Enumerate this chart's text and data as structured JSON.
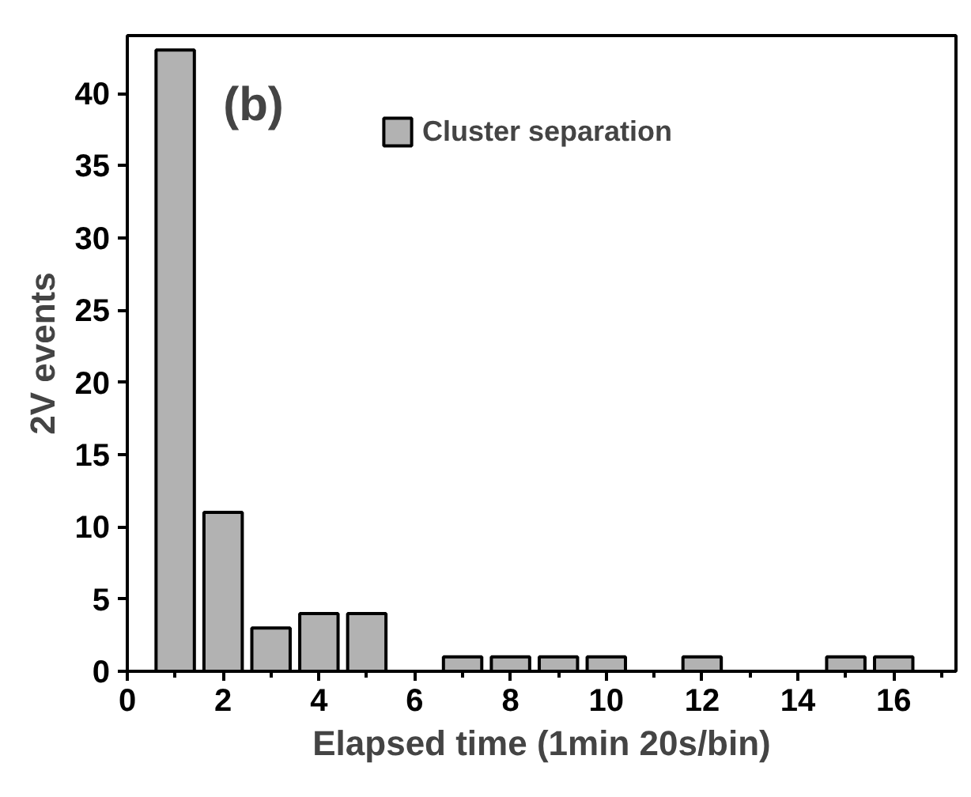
{
  "chart_data": {
    "type": "bar",
    "xlabel": "Elapsed time (1min 20s/bin)",
    "ylabel": "2V events",
    "x": [
      1,
      2,
      3,
      4,
      5,
      7,
      8,
      9,
      10,
      12,
      15,
      16
    ],
    "series": [
      {
        "name": "Cluster separation",
        "color": "#b2b2b2",
        "values": [
          43,
          11,
          3,
          4,
          4,
          1,
          1,
          1,
          1,
          1,
          1,
          1
        ]
      }
    ],
    "xlim": [
      0,
      17.3
    ],
    "xticks": [
      0,
      2,
      4,
      6,
      8,
      10,
      12,
      14,
      16
    ],
    "ylim": [
      0,
      44
    ],
    "yticks": [
      0,
      5,
      10,
      15,
      20,
      25,
      30,
      35,
      40
    ],
    "annotations": [
      "(b)"
    ],
    "legend": "top",
    "grid": false
  }
}
